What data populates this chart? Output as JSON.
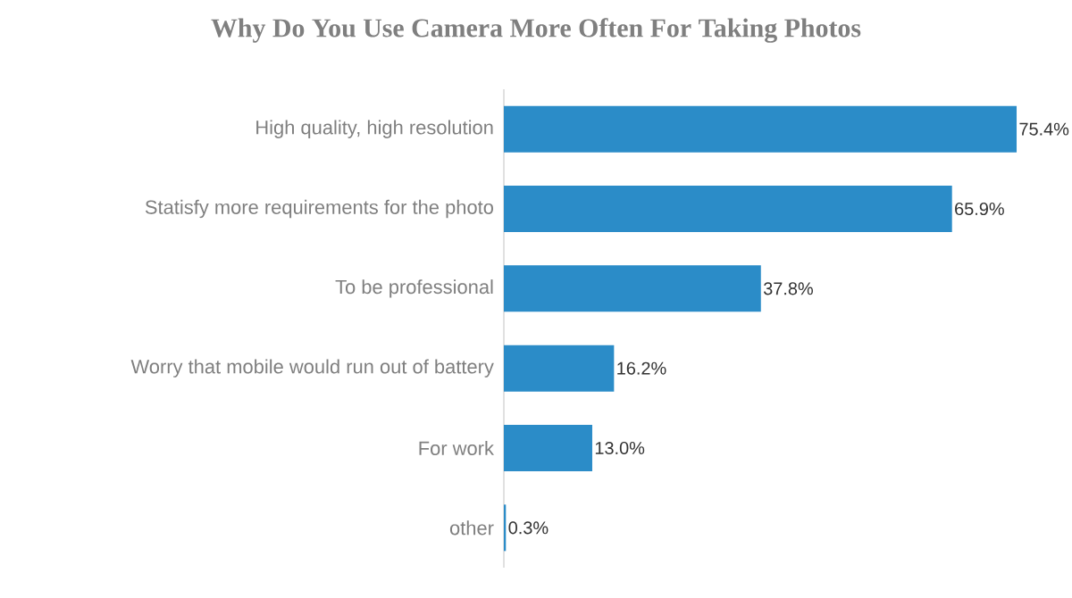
{
  "chart_data": {
    "type": "bar",
    "orientation": "horizontal",
    "title": "Why Do You Use Camera More Often For Taking Photos",
    "categories": [
      "High quality, high resolution",
      "Statisfy more requirements for the photo",
      "To be professional",
      "Worry that mobile would run out of battery",
      "For work",
      "other"
    ],
    "values": [
      75.4,
      65.9,
      37.8,
      16.2,
      13.0,
      0.3
    ],
    "value_labels": [
      "75.4%",
      "65.9%",
      "37.8%",
      "16.2%",
      "13.0%",
      "0.3%"
    ],
    "color": "#2b8cc8"
  }
}
